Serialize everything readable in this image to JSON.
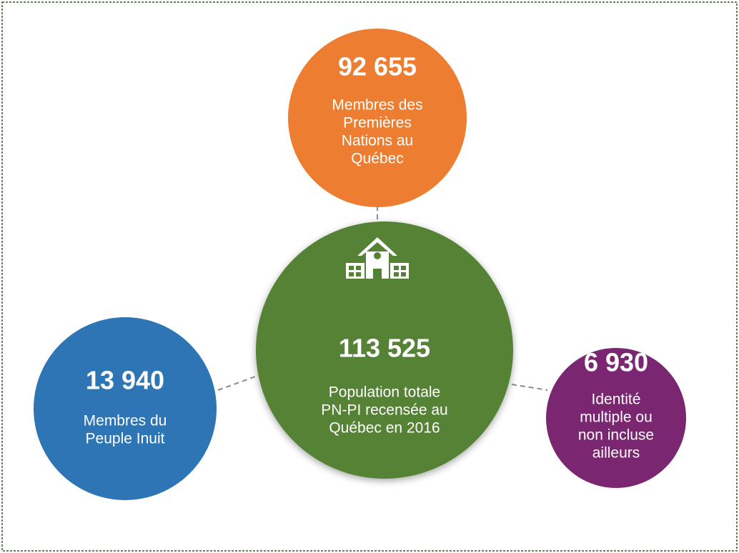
{
  "nodes": [
    {
      "value": "113 525",
      "lines": [
        "Population totale",
        "PN-PI recensée au",
        "Québec en 2016"
      ]
    },
    {
      "value": "92 655",
      "lines": [
        "Membres des",
        "Premières",
        "Nations au",
        "Québec"
      ]
    },
    {
      "value": "13 940",
      "lines": [
        "Membres du",
        "Peuple Inuit"
      ]
    },
    {
      "value": "6 930",
      "lines": [
        "Identité",
        "multiple ou",
        "non incluse",
        "ailleurs"
      ]
    }
  ]
}
